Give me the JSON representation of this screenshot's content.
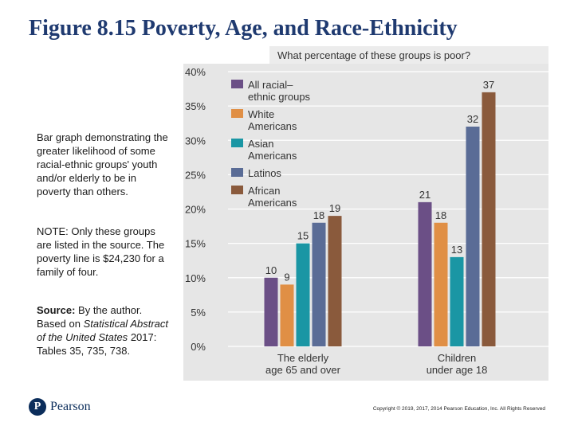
{
  "slide": {
    "title": "Figure 8.15 Poverty, Age, and Race-Ethnicity",
    "description": "Bar graph demonstrating the greater likelihood of some racial-ethnic groups' youth and/or elderly to be in poverty than others.",
    "note": "NOTE: Only these groups are listed in the source. The poverty line is $24,230 for a family of four.",
    "source_label": "Source:",
    "source_text": "By the author. Based on",
    "source_italic": "Statistical Abstract of the United States",
    "source_tables": "2017: Tables 35, 735, 738.",
    "logo_text": "Pearson",
    "logo_letter": "P",
    "copyright": "Copyright © 2019, 2017, 2014 Pearson Education, Inc. All Rights Reserved"
  },
  "chart_data": {
    "type": "bar",
    "title": "What percentage of these groups is poor?",
    "categories": [
      "The elderly age 65 and over",
      "Children under age 18"
    ],
    "category_lines": [
      [
        "The elderly",
        "age 65 and over"
      ],
      [
        "Children",
        "under age 18"
      ]
    ],
    "series": [
      {
        "name": "All racial–ethnic groups",
        "lines": [
          "All racial–",
          "ethnic groups"
        ],
        "values": [
          10,
          21
        ],
        "color": "#6b4f86"
      },
      {
        "name": "White Americans",
        "lines": [
          "White",
          "Americans"
        ],
        "values": [
          9,
          18
        ],
        "color": "#e08f45"
      },
      {
        "name": "Asian Americans",
        "lines": [
          "Asian",
          "Americans"
        ],
        "values": [
          15,
          13
        ],
        "color": "#1a96a4"
      },
      {
        "name": "Latinos",
        "lines": [
          "Latinos"
        ],
        "values": [
          18,
          32
        ],
        "color": "#5a6c96"
      },
      {
        "name": "African Americans",
        "lines": [
          "African",
          "Americans"
        ],
        "values": [
          19,
          37
        ],
        "color": "#8a5a3c"
      }
    ],
    "yticks": [
      "0%",
      "5%",
      "10%",
      "15%",
      "20%",
      "25%",
      "30%",
      "35%",
      "40%"
    ],
    "ylim": [
      0,
      40
    ],
    "ylabel": "",
    "xlabel": "",
    "colors": {
      "plot_bg": "#e6e6e6",
      "title_bg": "#ececec",
      "text": "#333333"
    }
  }
}
